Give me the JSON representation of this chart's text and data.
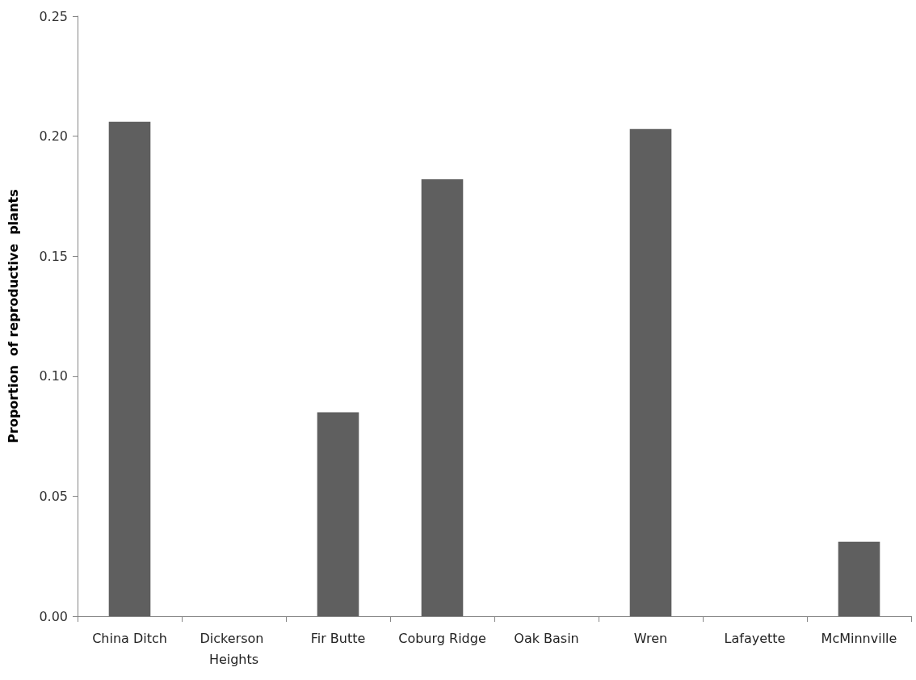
{
  "chart_data": {
    "type": "bar",
    "ylabel": "Proportion  of reproductive  plants",
    "categories": [
      "China Ditch",
      "Dickerson Heights",
      "Fir Butte",
      "Coburg Ridge",
      "Oak Basin",
      "Wren",
      "Lafayette",
      "McMinnville"
    ],
    "values": [
      0.206,
      0,
      0.085,
      0.182,
      0,
      0.203,
      0,
      0.031
    ],
    "color": "#5f5f5f",
    "ylim": [
      0,
      0.25
    ],
    "yticks": [
      {
        "value": 0,
        "label": "0.00"
      },
      {
        "value": 0.05,
        "label": "0.05"
      },
      {
        "value": 0.1,
        "label": "0.10"
      },
      {
        "value": 0.15,
        "label": "0.15"
      },
      {
        "value": 0.2,
        "label": "0.20"
      },
      {
        "value": 0.25,
        "label": "0.25"
      }
    ],
    "grid": false
  }
}
